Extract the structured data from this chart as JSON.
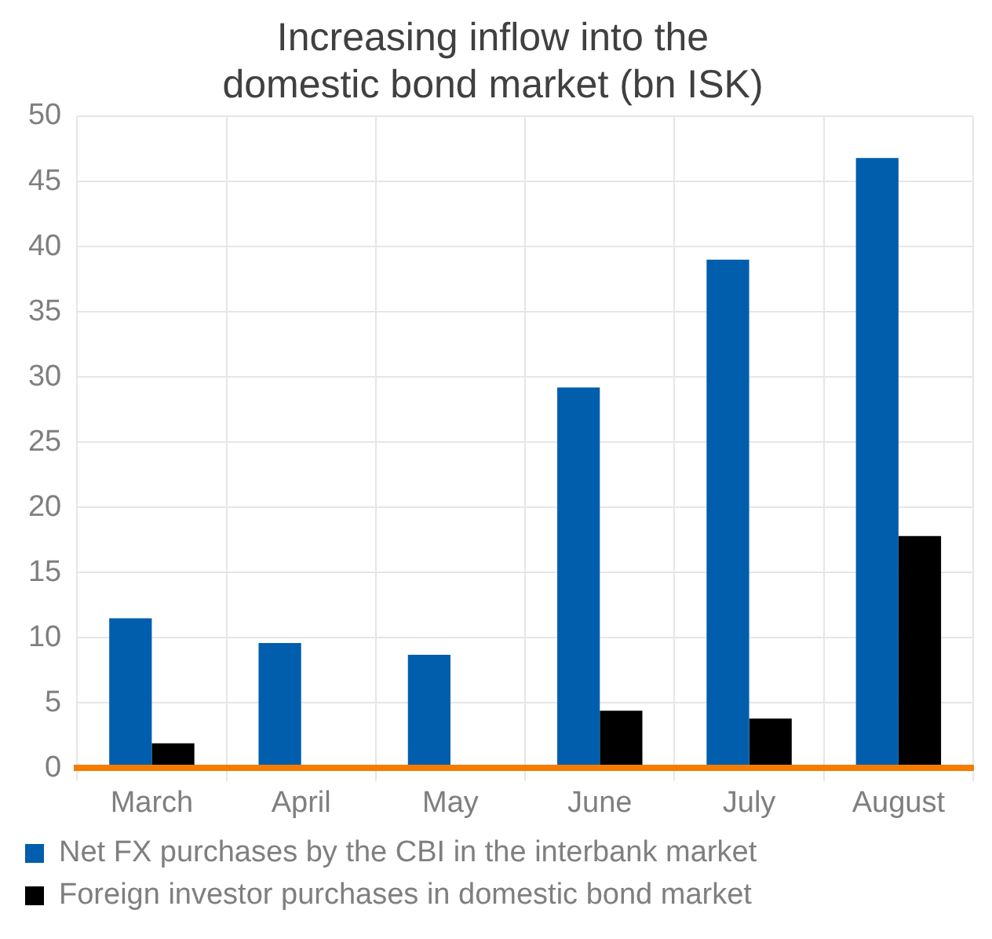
{
  "chart_data": {
    "type": "bar",
    "title": "Increasing inflow into the domestic bond market (bn ISK)",
    "categories": [
      "March",
      "April",
      "May",
      "June",
      "July",
      "August"
    ],
    "series": [
      {
        "name": "Net FX purchases by the CBI in the interbank market",
        "color": "#005eac",
        "values": [
          11.5,
          9.6,
          8.7,
          29.2,
          39.0,
          46.8
        ]
      },
      {
        "name": "Foreign investor purchases in domestic bond market",
        "color": "#000000",
        "values": [
          1.9,
          null,
          0,
          4.4,
          3.8,
          17.8
        ]
      }
    ],
    "ylim": [
      0,
      50
    ],
    "yticks": [
      0,
      5,
      10,
      15,
      20,
      25,
      30,
      35,
      40,
      45,
      50
    ],
    "grid": true,
    "legend": "bottom"
  }
}
